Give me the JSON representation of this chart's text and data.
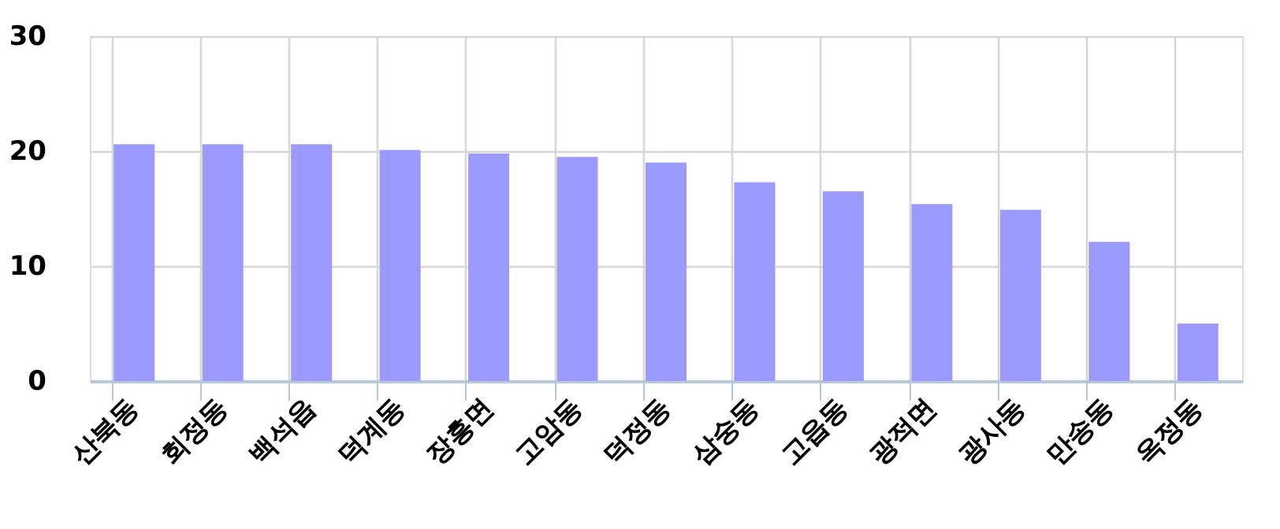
{
  "chart_data": {
    "type": "bar",
    "categories": [
      "산북동",
      "회정동",
      "백석읍",
      "덕계동",
      "장흥면",
      "고암동",
      "덕정동",
      "삼숭동",
      "고읍동",
      "광적면",
      "광사동",
      "만송동",
      "옥정동"
    ],
    "values": [
      20.6,
      20.6,
      20.6,
      20.1,
      19.8,
      19.5,
      19.0,
      17.3,
      16.5,
      15.4,
      14.9,
      12.1,
      5.0
    ],
    "color": "#9b9bff",
    "ylim": [
      0,
      30
    ],
    "yticks": [
      0,
      10,
      20,
      30
    ],
    "grid": true
  }
}
